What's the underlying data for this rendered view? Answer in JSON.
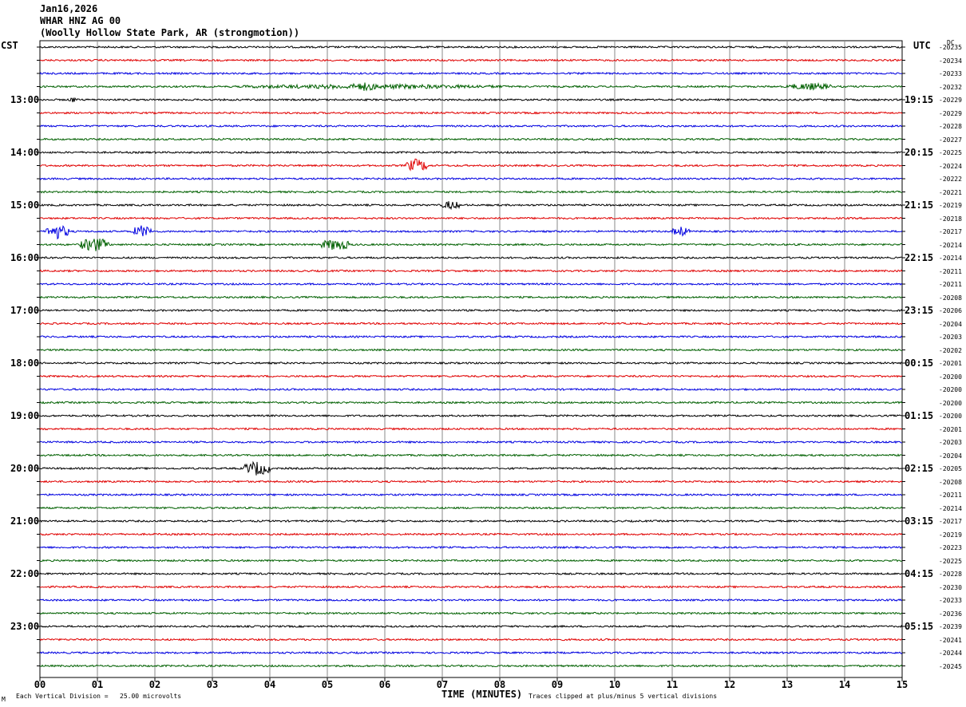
{
  "header": {
    "date": "Jan16,2026",
    "station": "WHAR HNZ AG 00",
    "location": "(Woolly Hollow State Park, AR (strongmotion))"
  },
  "left_tz": "CST",
  "right_tz": "UTC",
  "dc_label": "DC",
  "footer": {
    "vertical_division": "Each Vertical Division =   25.00 microvolts",
    "clip_note": "Traces clipped at plus/minus 5 vertical divisions",
    "corner_mark": "M"
  },
  "chart_data": {
    "type": "line",
    "title": "",
    "xlabel": "TIME (MINUTES)",
    "ylabel": "",
    "xlim": [
      0,
      15
    ],
    "x_ticks": [
      "00",
      "01",
      "02",
      "03",
      "04",
      "05",
      "06",
      "07",
      "08",
      "09",
      "10",
      "11",
      "12",
      "13",
      "14",
      "15"
    ],
    "trace_colors": [
      "#000000",
      "#e00000",
      "#0000e0",
      "#006000"
    ],
    "grid": true,
    "traces_per_hour": 4,
    "first_trace_time_cst": "12:45",
    "left_hour_labels": [
      "13:00",
      "14:00",
      "15:00",
      "16:00",
      "17:00",
      "18:00",
      "19:00",
      "20:00",
      "21:00",
      "22:00",
      "23:00"
    ],
    "right_hour_labels": [
      "19:15",
      "20:15",
      "21:15",
      "22:15",
      "23:15",
      "00:15",
      "01:15",
      "02:15",
      "03:15",
      "04:15",
      "05:15"
    ],
    "dc_offsets": [
      "-20235",
      "-20234",
      "-20233",
      "-20232",
      "-20229",
      "-20229",
      "-20228",
      "-20227",
      "-20225",
      "-20224",
      "-20222",
      "-20221",
      "-20219",
      "-20218",
      "-20217",
      "-20214",
      "-20214",
      "-20211",
      "-20211",
      "-20208",
      "-20206",
      "-20204",
      "-20203",
      "-20202",
      "-20201",
      "-20200",
      "-20200",
      "-20200",
      "-20200",
      "-20201",
      "-20203",
      "-20204",
      "-20205",
      "-20208",
      "-20211",
      "-20214",
      "-20217",
      "-20219",
      "-20223",
      "-20225",
      "-20228",
      "-20230",
      "-20233",
      "-20236",
      "-20239",
      "-20241",
      "-20244",
      "-20245"
    ],
    "events": [
      {
        "trace": 3,
        "start_min": 3.5,
        "end_min": 8.1,
        "amplitude": 0.8
      },
      {
        "trace": 3,
        "start_min": 5.4,
        "end_min": 5.9,
        "amplitude": 1.4
      },
      {
        "trace": 3,
        "start_min": 13.0,
        "end_min": 13.8,
        "amplitude": 1.2
      },
      {
        "trace": 4,
        "start_min": 0.5,
        "end_min": 0.65,
        "amplitude": 1.0
      },
      {
        "trace": 9,
        "start_min": 6.35,
        "end_min": 6.75,
        "amplitude": 2.2
      },
      {
        "trace": 12,
        "start_min": 7.0,
        "end_min": 7.3,
        "amplitude": 1.5
      },
      {
        "trace": 14,
        "start_min": 0.1,
        "end_min": 0.5,
        "amplitude": 2.4
      },
      {
        "trace": 14,
        "start_min": 1.6,
        "end_min": 1.95,
        "amplitude": 2.0
      },
      {
        "trace": 14,
        "start_min": 11.0,
        "end_min": 11.3,
        "amplitude": 1.6
      },
      {
        "trace": 15,
        "start_min": 0.7,
        "end_min": 1.2,
        "amplitude": 2.4
      },
      {
        "trace": 15,
        "start_min": 4.9,
        "end_min": 5.4,
        "amplitude": 2.0
      },
      {
        "trace": 32,
        "start_min": 3.55,
        "end_min": 4.0,
        "amplitude": 2.4
      }
    ]
  }
}
